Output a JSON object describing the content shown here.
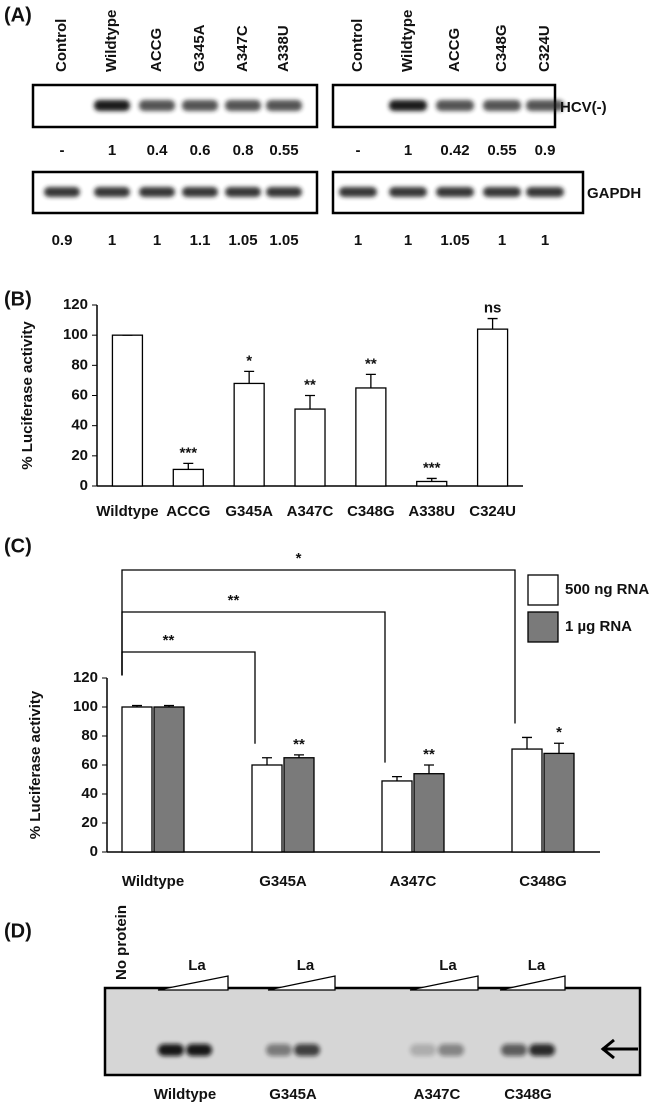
{
  "panel_a": {
    "label": "(A)",
    "hcv_label": "HCV(-)",
    "gapdh_label": "GAPDH",
    "left": {
      "lanes": [
        "Control",
        "Wildtype",
        "ACCG",
        "G345A",
        "A347C",
        "A338U"
      ],
      "hcv_values": [
        "-",
        "1",
        "0.4",
        "0.6",
        "0.8",
        "0.55"
      ],
      "gapdh_values": [
        "0.9",
        "1",
        "1",
        "1.1",
        "1.05",
        "1.05"
      ]
    },
    "right": {
      "lanes": [
        "Control",
        "Wildtype",
        "ACCG",
        "C348G",
        "C324U"
      ],
      "hcv_values": [
        "-",
        "1",
        "0.42",
        "0.55",
        "0.9"
      ],
      "gapdh_values": [
        "1",
        "1",
        "1.05",
        "1",
        "1"
      ]
    }
  },
  "chart_data": [
    {
      "type": "bar",
      "panel_label": "(B)",
      "ylabel": "% Luciferase  activity",
      "categories": [
        "Wildtype",
        "ACCG",
        "G345A",
        "A347C",
        "C348G",
        "A338U",
        "C324U"
      ],
      "values": [
        100,
        11,
        68,
        51,
        65,
        3,
        104
      ],
      "errors": [
        0,
        4,
        8,
        9,
        9,
        2,
        7
      ],
      "color": "#ffffff",
      "edge_color": "#000000",
      "ylim": [
        0,
        120
      ],
      "yticks": [
        0,
        20,
        40,
        60,
        80,
        100,
        120
      ],
      "grid": false,
      "significance": [
        {
          "category": "ACCG",
          "label": "***"
        },
        {
          "category": "G345A",
          "label": "*"
        },
        {
          "category": "A347C",
          "label": "**"
        },
        {
          "category": "C348G",
          "label": "**"
        },
        {
          "category": "A338U",
          "label": "***"
        },
        {
          "category": "C324U",
          "label": "ns"
        }
      ]
    },
    {
      "type": "grouped_bar",
      "panel_label": "(C)",
      "ylabel": "% Luciferase activity",
      "categories": [
        "Wildtype",
        "G345A",
        "A347C",
        "C348G"
      ],
      "series": [
        {
          "name": "500 ng RNA",
          "color": "#ffffff",
          "values": [
            100,
            60,
            49,
            71
          ],
          "errors": [
            1,
            5,
            3,
            8
          ]
        },
        {
          "name": "1 µg RNA",
          "color": "#7a7a7a",
          "values": [
            100,
            65,
            54,
            68
          ],
          "errors": [
            1,
            2,
            6,
            7
          ]
        }
      ],
      "edge_color": "#000000",
      "ylim": [
        0,
        120
      ],
      "yticks": [
        0,
        20,
        40,
        60,
        80,
        100,
        120
      ],
      "grid": false,
      "legend": "upper right",
      "significance": [
        {
          "category": "G345A",
          "series": "1 µg RNA",
          "label": "**"
        },
        {
          "category": "A347C",
          "series": "1 µg RNA",
          "label": "**"
        },
        {
          "category": "C348G",
          "series": "1 µg RNA",
          "label": "*"
        }
      ],
      "comparisons": [
        {
          "from": "Wildtype",
          "to": "G345A",
          "label": "**"
        },
        {
          "from": "Wildtype",
          "to": "A347C",
          "label": "**"
        },
        {
          "from": "Wildtype",
          "to": "C348G",
          "label": "*"
        }
      ]
    }
  ],
  "panel_d": {
    "label": "(D)",
    "no_protein_label": "No protein",
    "protein_label": "La",
    "lanes": [
      "Wildtype",
      "G345A",
      "A347C",
      "C348G"
    ]
  }
}
